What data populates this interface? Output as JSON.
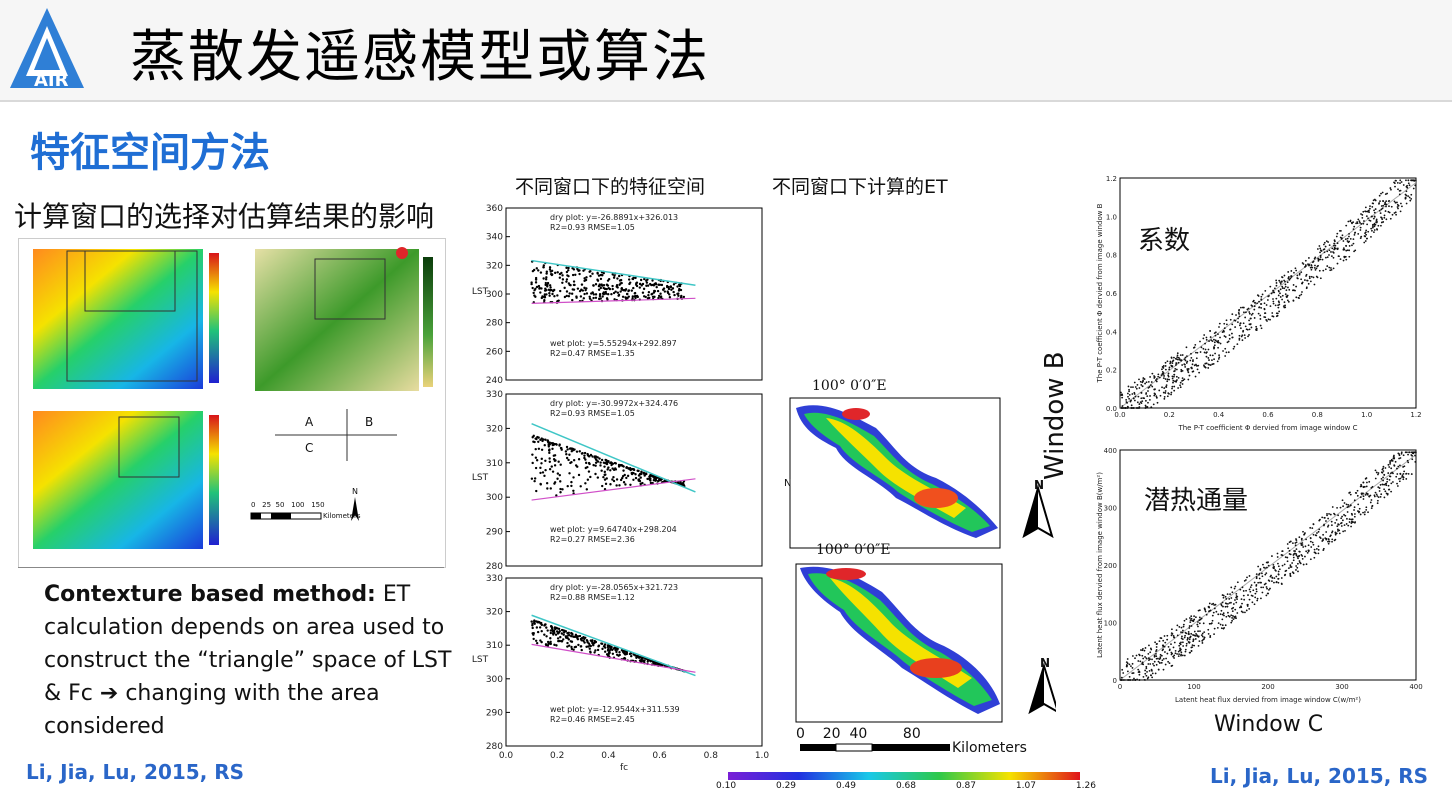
{
  "header": {
    "logo_text": "AIR",
    "title": "蒸散发遥感模型或算法"
  },
  "section_title": "特征空间方法",
  "subtitle": "计算窗口的选择对估算结果的影响",
  "captions": {
    "feature_space": "不同窗口下的特征空间",
    "et_windows": "不同窗口下计算的ET"
  },
  "method_text": {
    "bold": "Contexture based method:",
    "body": " ET calculation depends on area used to construct the “triangle” space of LST & Fc ➔ changing with the area considered"
  },
  "citation_left": "Li, Jia, Lu, 2015, RS",
  "citation_right": "Li, Jia, Lu, 2015, RS",
  "window_grid": {
    "a": "A",
    "b": "B",
    "c": "C"
  },
  "scale_bar": {
    "ticks": [
      "0",
      "25",
      "50",
      "100",
      "150"
    ],
    "unit": "Kilometers",
    "north": "N"
  },
  "scatter_plots": [
    {
      "dry": "dry plot: y=-26.8891x+326.013",
      "dry_stats": "R2=0.93          RMSE=1.05",
      "wet": "wet plot: y=5.55294x+292.897",
      "wet_stats": "R2=0.47          RMSE=1.35",
      "yticks": [
        "360",
        "340",
        "320",
        "300",
        "280",
        "260",
        "240"
      ]
    },
    {
      "dry": "dry plot: y=-30.9972x+324.476",
      "dry_stats": "R2=0.93          RMSE=1.05",
      "wet": "wet plot: y=9.64740x+298.204",
      "wet_stats": "R2=0.27          RMSE=2.36",
      "yticks": [
        "330",
        "320",
        "310",
        "300",
        "290",
        "280"
      ]
    },
    {
      "dry": "dry plot: y=-28.0565x+321.723",
      "dry_stats": "R2=0.88          RMSE=1.12",
      "wet": "wet plot: y=-12.9544x+311.539",
      "wet_stats": "R2=0.46          RMSE=2.45",
      "yticks": [
        "330",
        "320",
        "310",
        "300",
        "290",
        "280"
      ]
    }
  ],
  "scatter_axis": {
    "ylabel": "LST",
    "xlabel": "fc",
    "xticks": [
      "0.0",
      "0.2",
      "0.4",
      "0.6",
      "0.8",
      "1.0"
    ]
  },
  "et_maps": {
    "coord_label": "100°  0′0″E",
    "north": "N",
    "scale_ticks": [
      "0",
      "20",
      "40",
      "80"
    ],
    "scale_unit": "Kilometers",
    "colorbar_ticks": [
      "0.10",
      "0.29",
      "0.49",
      "0.68",
      "0.87",
      "1.07",
      "1.26"
    ]
  },
  "comparison": {
    "top_label": "系数",
    "top_xlabel": "The P-T coefficient  Φ dervied from image window  C",
    "top_ylabel": "The P-T coefficient  Φ dervied from image window B",
    "top_ticks": [
      "0.0",
      "0.2",
      "0.4",
      "0.6",
      "0.8",
      "1.0",
      "1.2"
    ],
    "bottom_label": "潜热通量",
    "bottom_xlabel": "Latent heat flux dervied from image window C(w/m²)",
    "bottom_ylabel": "Latent heat flux dervied from image window B(w/m²)",
    "bottom_ticks": [
      "0",
      "100",
      "200",
      "300",
      "400"
    ],
    "window_b": "Window B",
    "window_c": "Window C"
  },
  "chart_data": [
    {
      "type": "scatter",
      "title": "",
      "xlabel": "fc",
      "ylabel": "LST",
      "xlim": [
        0,
        1.0
      ],
      "ylim": [
        240,
        360
      ],
      "series": [
        {
          "name": "dry plot",
          "slope": -26.8891,
          "intercept": 326.013,
          "R2": 0.93,
          "RMSE": 1.05
        },
        {
          "name": "wet plot",
          "slope": 5.55294,
          "intercept": 292.897,
          "R2": 0.47,
          "RMSE": 1.35
        }
      ]
    },
    {
      "type": "scatter",
      "title": "",
      "xlabel": "fc",
      "ylabel": "LST",
      "xlim": [
        0,
        1.0
      ],
      "ylim": [
        280,
        330
      ],
      "series": [
        {
          "name": "dry plot",
          "slope": -30.9972,
          "intercept": 324.476,
          "R2": 0.93,
          "RMSE": 1.05
        },
        {
          "name": "wet plot",
          "slope": 9.6474,
          "intercept": 298.204,
          "R2": 0.27,
          "RMSE": 2.36
        }
      ]
    },
    {
      "type": "scatter",
      "title": "",
      "xlabel": "fc",
      "ylabel": "LST",
      "xlim": [
        0,
        1.0
      ],
      "ylim": [
        280,
        330
      ],
      "series": [
        {
          "name": "dry plot",
          "slope": -28.0565,
          "intercept": 321.723,
          "R2": 0.88,
          "RMSE": 1.12
        },
        {
          "name": "wet plot",
          "slope": -12.9544,
          "intercept": 311.539,
          "R2": 0.46,
          "RMSE": 2.45
        }
      ]
    },
    {
      "type": "scatter",
      "title": "",
      "xlabel": "The P-T coefficient Φ dervied from image window C",
      "ylabel": "The P-T coefficient Φ dervied from image window B",
      "xlim": [
        0,
        1.2
      ],
      "ylim": [
        0,
        1.2
      ]
    },
    {
      "type": "scatter",
      "title": "",
      "xlabel": "Latent heat flux dervied from image window C(w/m²)",
      "ylabel": "Latent heat flux dervied from image window B(w/m²)",
      "xlim": [
        0,
        400
      ],
      "ylim": [
        0,
        400
      ]
    }
  ]
}
